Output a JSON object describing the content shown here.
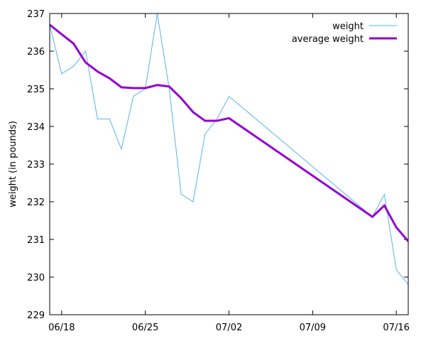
{
  "chart_data": {
    "type": "line",
    "ylabel": "weight (in pounds)",
    "xlabel": "",
    "title": "",
    "ylim": [
      229,
      237
    ],
    "xlim": [
      "2024-06-17",
      "2024-07-17"
    ],
    "yticks": [
      229,
      230,
      231,
      232,
      233,
      234,
      235,
      236,
      237
    ],
    "xticks": [
      {
        "date": "2024-06-18",
        "label": "06/18"
      },
      {
        "date": "2024-06-25",
        "label": "06/25"
      },
      {
        "date": "2024-07-02",
        "label": "07/02"
      },
      {
        "date": "2024-07-09",
        "label": "07/09"
      },
      {
        "date": "2024-07-16",
        "label": "07/16"
      }
    ],
    "grid": false,
    "legend_position": "top-right",
    "series": [
      {
        "name": "weight",
        "color": "#56b4e9",
        "style": "thin",
        "points": [
          [
            "2024-06-17",
            236.7
          ],
          [
            "2024-06-18",
            235.4
          ],
          [
            "2024-06-19",
            235.6
          ],
          [
            "2024-06-20",
            236.0
          ],
          [
            "2024-06-21",
            234.2
          ],
          [
            "2024-06-22",
            234.2
          ],
          [
            "2024-06-23",
            233.4
          ],
          [
            "2024-06-24",
            234.8
          ],
          [
            "2024-06-25",
            235.0
          ],
          [
            "2024-06-26",
            237.0
          ],
          [
            "2024-06-27",
            235.0
          ],
          [
            "2024-06-28",
            232.2
          ],
          [
            "2024-06-29",
            232.0
          ],
          [
            "2024-06-30",
            233.8
          ],
          [
            "2024-07-01",
            234.2
          ],
          [
            "2024-07-02",
            234.8
          ],
          [
            "2024-07-14",
            231.6
          ],
          [
            "2024-07-15",
            232.2
          ],
          [
            "2024-07-16",
            230.2
          ],
          [
            "2024-07-17",
            229.8
          ]
        ]
      },
      {
        "name": "average weight",
        "color": "#9400d3",
        "style": "thick",
        "points": [
          [
            "2024-06-17",
            236.7
          ],
          [
            "2024-06-18",
            236.45
          ],
          [
            "2024-06-19",
            236.2
          ],
          [
            "2024-06-20",
            235.7
          ],
          [
            "2024-06-21",
            235.46
          ],
          [
            "2024-06-22",
            235.28
          ],
          [
            "2024-06-23",
            235.04
          ],
          [
            "2024-06-24",
            235.02
          ],
          [
            "2024-06-25",
            235.02
          ],
          [
            "2024-06-26",
            235.1
          ],
          [
            "2024-06-27",
            235.06
          ],
          [
            "2024-06-28",
            234.75
          ],
          [
            "2024-06-29",
            234.38
          ],
          [
            "2024-06-30",
            234.15
          ],
          [
            "2024-07-01",
            234.15
          ],
          [
            "2024-07-02",
            234.22
          ],
          [
            "2024-07-14",
            231.6
          ],
          [
            "2024-07-15",
            231.9
          ],
          [
            "2024-07-16",
            231.32
          ],
          [
            "2024-07-17",
            230.95
          ]
        ]
      }
    ]
  }
}
